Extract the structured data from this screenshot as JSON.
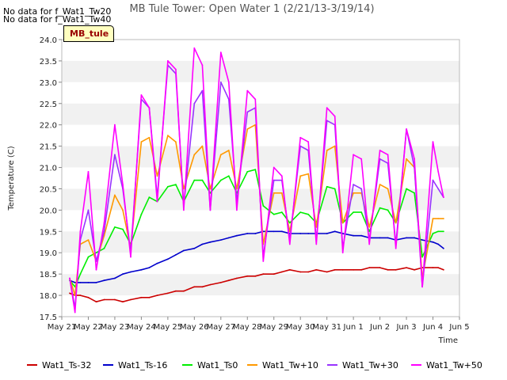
{
  "header": {
    "title": "MB Tule Tower: Open Water 1 (2/21/13-3/19/14)",
    "nodata_lines": [
      "No data for f_Wat1_Tw20",
      "No data for f_Wat1_Tw40"
    ],
    "badge": "MB_tule"
  },
  "chart_data": {
    "type": "line",
    "title": "MB Tule Tower: Open Water 1 (2/21/13-3/19/14)",
    "xlabel": "Time",
    "ylabel": "Temperature (C)",
    "ylim": [
      17.5,
      24.0
    ],
    "xlim": [
      0,
      15
    ],
    "yticks": [
      "17.5",
      "18.0",
      "18.5",
      "19.0",
      "19.5",
      "20.0",
      "20.5",
      "21.0",
      "21.5",
      "22.0",
      "22.5",
      "23.0",
      "23.5",
      "24.0"
    ],
    "xticks": [
      "May 21",
      "May 22",
      "May 23",
      "May 24",
      "May 25",
      "May 26",
      "May 27",
      "May 28",
      "May 29",
      "May 30",
      "May 31",
      "Jun 1",
      "Jun 2",
      "Jun 3",
      "Jun 4",
      "Jun 5"
    ],
    "grid": "horizontal bands",
    "legend_position": "bottom",
    "x": [
      0.3,
      0.5,
      0.7,
      1,
      1.3,
      1.6,
      2,
      2.3,
      2.6,
      3,
      3.3,
      3.6,
      4,
      4.3,
      4.6,
      5,
      5.3,
      5.6,
      6,
      6.3,
      6.6,
      7,
      7.3,
      7.6,
      8,
      8.3,
      8.6,
      9,
      9.3,
      9.6,
      10,
      10.3,
      10.6,
      11,
      11.3,
      11.6,
      12,
      12.3,
      12.6,
      13,
      13.3,
      13.6,
      14,
      14.2,
      14.4
    ],
    "series": [
      {
        "name": "Wat1_Ts-32",
        "color": "#cc0000",
        "values": [
          18.05,
          18.0,
          18.0,
          17.95,
          17.85,
          17.9,
          17.9,
          17.85,
          17.9,
          17.95,
          17.95,
          18.0,
          18.05,
          18.1,
          18.1,
          18.2,
          18.2,
          18.25,
          18.3,
          18.35,
          18.4,
          18.45,
          18.45,
          18.5,
          18.5,
          18.55,
          18.6,
          18.55,
          18.55,
          18.6,
          18.55,
          18.6,
          18.6,
          18.6,
          18.6,
          18.65,
          18.65,
          18.6,
          18.6,
          18.65,
          18.6,
          18.65,
          18.65,
          18.65,
          18.6
        ]
      },
      {
        "name": "Wat1_Ts-16",
        "color": "#0000cc",
        "values": [
          18.35,
          18.3,
          18.3,
          18.3,
          18.3,
          18.35,
          18.4,
          18.5,
          18.55,
          18.6,
          18.65,
          18.75,
          18.85,
          18.95,
          19.05,
          19.1,
          19.2,
          19.25,
          19.3,
          19.35,
          19.4,
          19.45,
          19.45,
          19.5,
          19.5,
          19.5,
          19.45,
          19.45,
          19.45,
          19.45,
          19.45,
          19.5,
          19.45,
          19.4,
          19.4,
          19.35,
          19.35,
          19.35,
          19.3,
          19.35,
          19.35,
          19.3,
          19.25,
          19.2,
          19.1
        ]
      },
      {
        "name": "Wat1_Ts0",
        "color": "#00ee00",
        "values": [
          18.35,
          18.2,
          18.5,
          18.9,
          19.0,
          19.1,
          19.6,
          19.55,
          19.2,
          19.9,
          20.3,
          20.2,
          20.55,
          20.6,
          20.2,
          20.7,
          20.7,
          20.4,
          20.7,
          20.8,
          20.4,
          20.9,
          20.95,
          20.1,
          19.9,
          19.95,
          19.7,
          19.95,
          19.9,
          19.7,
          20.55,
          20.5,
          19.7,
          19.95,
          19.95,
          19.5,
          20.05,
          20.0,
          19.7,
          20.5,
          20.4,
          18.9,
          19.45,
          19.5,
          19.5
        ]
      },
      {
        "name": "Wat1_Tw+10",
        "color": "#ff9900",
        "values": [
          18.4,
          18.0,
          19.2,
          19.3,
          18.8,
          19.4,
          20.35,
          20.0,
          19.1,
          21.6,
          21.7,
          20.8,
          21.75,
          21.6,
          20.5,
          21.3,
          21.5,
          20.5,
          21.3,
          21.4,
          20.5,
          21.9,
          22.0,
          19.2,
          20.4,
          20.4,
          19.5,
          20.8,
          20.85,
          19.6,
          21.4,
          21.5,
          19.7,
          20.4,
          20.4,
          19.6,
          20.6,
          20.5,
          19.7,
          21.2,
          21.0,
          18.4,
          19.8,
          19.8,
          19.8
        ]
      },
      {
        "name": "Wat1_Tw+30",
        "color": "#9933ff",
        "values": [
          18.4,
          17.7,
          19.3,
          20.0,
          18.8,
          19.5,
          21.3,
          20.5,
          19.0,
          22.6,
          22.4,
          20.3,
          23.4,
          23.2,
          20.1,
          22.5,
          22.8,
          20.0,
          23.0,
          22.6,
          20.2,
          22.3,
          22.4,
          18.9,
          20.7,
          20.7,
          19.3,
          21.5,
          21.4,
          19.3,
          22.1,
          22.0,
          19.1,
          20.6,
          20.5,
          19.3,
          21.2,
          21.1,
          19.2,
          21.9,
          21.0,
          18.2,
          20.7,
          20.5,
          20.3
        ]
      },
      {
        "name": "Wat1_Tw+50",
        "color": "#ff00ff",
        "values": [
          18.4,
          17.6,
          19.5,
          20.9,
          18.6,
          19.7,
          22.0,
          20.6,
          18.9,
          22.7,
          22.4,
          20.2,
          23.5,
          23.3,
          20.0,
          23.8,
          23.4,
          20.0,
          23.7,
          23.0,
          20.0,
          22.8,
          22.6,
          18.8,
          21.0,
          20.8,
          19.2,
          21.7,
          21.6,
          19.2,
          22.4,
          22.2,
          19.0,
          21.3,
          21.2,
          19.2,
          21.4,
          21.3,
          19.1,
          21.9,
          21.2,
          18.2,
          21.6,
          20.9,
          20.3
        ]
      }
    ]
  }
}
